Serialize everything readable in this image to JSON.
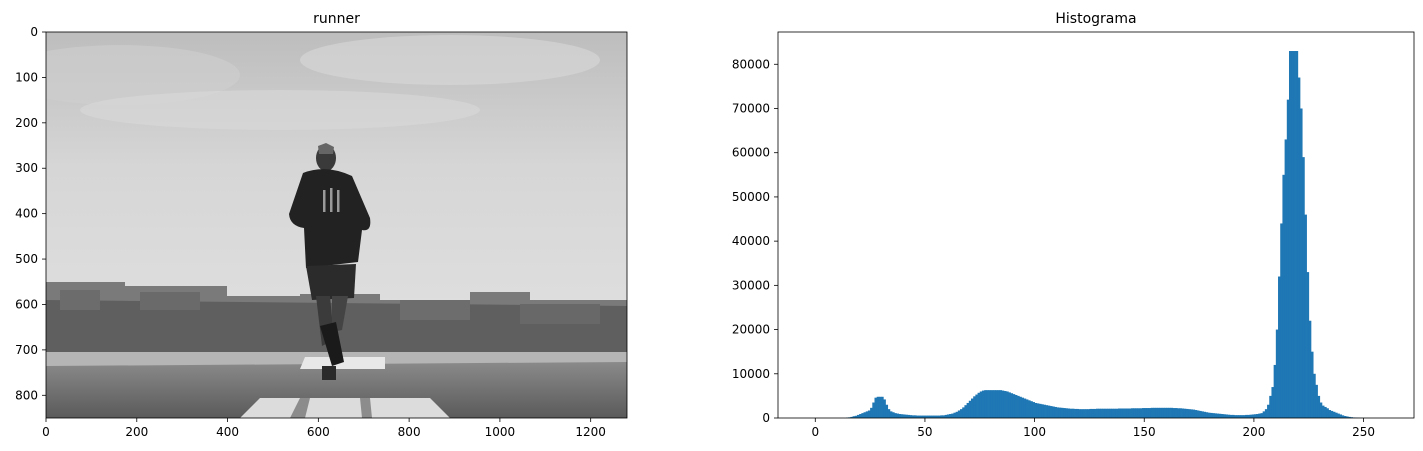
{
  "figure": {
    "background": "#ffffff"
  },
  "chart_data": [
    {
      "type": "image",
      "title": "runner",
      "image_description": "Grayscale photo of a runner seen from behind on an airfield runway, overcast sky, row of buildings and trees on the horizon",
      "xlim": [
        0,
        1280
      ],
      "ylim": [
        850,
        0
      ],
      "y_inverted": true,
      "xticks": [
        0,
        200,
        400,
        600,
        800,
        1000,
        1200
      ],
      "yticks": [
        0,
        100,
        200,
        300,
        400,
        500,
        600,
        700,
        800
      ],
      "grid": false
    },
    {
      "type": "bar",
      "title": "Histograma",
      "xlabel": "",
      "ylabel": "",
      "bar_color": "#1f77b4",
      "xlim": [
        -17,
        273
      ],
      "ylim": [
        0,
        87300
      ],
      "xticks": [
        0,
        50,
        100,
        150,
        200,
        250
      ],
      "yticks": [
        0,
        10000,
        20000,
        30000,
        40000,
        50000,
        60000,
        70000,
        80000
      ],
      "grid": false,
      "bins": [
        [
          14,
          80
        ],
        [
          15,
          150
        ],
        [
          16,
          250
        ],
        [
          17,
          400
        ],
        [
          18,
          500
        ],
        [
          19,
          700
        ],
        [
          20,
          900
        ],
        [
          21,
          1100
        ],
        [
          22,
          1300
        ],
        [
          23,
          1500
        ],
        [
          24,
          1700
        ],
        [
          25,
          2300
        ],
        [
          26,
          3500
        ],
        [
          27,
          4600
        ],
        [
          28,
          4800
        ],
        [
          29,
          4800
        ],
        [
          30,
          4800
        ],
        [
          31,
          4200
        ],
        [
          32,
          3000
        ],
        [
          33,
          2000
        ],
        [
          34,
          1500
        ],
        [
          35,
          1300
        ],
        [
          36,
          1100
        ],
        [
          37,
          1000
        ],
        [
          38,
          900
        ],
        [
          39,
          850
        ],
        [
          40,
          800
        ],
        [
          41,
          750
        ],
        [
          42,
          700
        ],
        [
          43,
          650
        ],
        [
          44,
          600
        ],
        [
          45,
          600
        ],
        [
          46,
          550
        ],
        [
          47,
          550
        ],
        [
          48,
          550
        ],
        [
          49,
          550
        ],
        [
          50,
          550
        ],
        [
          51,
          550
        ],
        [
          52,
          550
        ],
        [
          53,
          550
        ],
        [
          54,
          550
        ],
        [
          55,
          550
        ],
        [
          56,
          550
        ],
        [
          57,
          600
        ],
        [
          58,
          600
        ],
        [
          59,
          700
        ],
        [
          60,
          800
        ],
        [
          61,
          900
        ],
        [
          62,
          1000
        ],
        [
          63,
          1200
        ],
        [
          64,
          1400
        ],
        [
          65,
          1700
        ],
        [
          66,
          2000
        ],
        [
          67,
          2400
        ],
        [
          68,
          2900
        ],
        [
          69,
          3400
        ],
        [
          70,
          3900
        ],
        [
          71,
          4400
        ],
        [
          72,
          4900
        ],
        [
          73,
          5300
        ],
        [
          74,
          5700
        ],
        [
          75,
          6000
        ],
        [
          76,
          6200
        ],
        [
          77,
          6300
        ],
        [
          78,
          6300
        ],
        [
          79,
          6300
        ],
        [
          80,
          6300
        ],
        [
          81,
          6300
        ],
        [
          82,
          6300
        ],
        [
          83,
          6300
        ],
        [
          84,
          6300
        ],
        [
          85,
          6200
        ],
        [
          86,
          6100
        ],
        [
          87,
          6000
        ],
        [
          88,
          5800
        ],
        [
          89,
          5600
        ],
        [
          90,
          5400
        ],
        [
          91,
          5200
        ],
        [
          92,
          5000
        ],
        [
          93,
          4800
        ],
        [
          94,
          4600
        ],
        [
          95,
          4400
        ],
        [
          96,
          4200
        ],
        [
          97,
          4000
        ],
        [
          98,
          3800
        ],
        [
          99,
          3600
        ],
        [
          100,
          3400
        ],
        [
          101,
          3300
        ],
        [
          102,
          3200
        ],
        [
          103,
          3100
        ],
        [
          104,
          3000
        ],
        [
          105,
          2900
        ],
        [
          106,
          2800
        ],
        [
          107,
          2700
        ],
        [
          108,
          2600
        ],
        [
          109,
          2500
        ],
        [
          110,
          2400
        ],
        [
          111,
          2350
        ],
        [
          112,
          2300
        ],
        [
          113,
          2250
        ],
        [
          114,
          2200
        ],
        [
          115,
          2150
        ],
        [
          116,
          2100
        ],
        [
          117,
          2100
        ],
        [
          118,
          2050
        ],
        [
          119,
          2050
        ],
        [
          120,
          2000
        ],
        [
          121,
          2000
        ],
        [
          122,
          2000
        ],
        [
          123,
          2000
        ],
        [
          124,
          2000
        ],
        [
          125,
          2050
        ],
        [
          126,
          2050
        ],
        [
          127,
          2050
        ],
        [
          128,
          2100
        ],
        [
          129,
          2100
        ],
        [
          130,
          2100
        ],
        [
          131,
          2100
        ],
        [
          132,
          2100
        ],
        [
          133,
          2100
        ],
        [
          134,
          2100
        ],
        [
          135,
          2100
        ],
        [
          136,
          2100
        ],
        [
          137,
          2100
        ],
        [
          138,
          2150
        ],
        [
          139,
          2150
        ],
        [
          140,
          2150
        ],
        [
          141,
          2150
        ],
        [
          142,
          2150
        ],
        [
          143,
          2150
        ],
        [
          144,
          2200
        ],
        [
          145,
          2200
        ],
        [
          146,
          2200
        ],
        [
          147,
          2200
        ],
        [
          148,
          2200
        ],
        [
          149,
          2250
        ],
        [
          150,
          2250
        ],
        [
          151,
          2250
        ],
        [
          152,
          2250
        ],
        [
          153,
          2300
        ],
        [
          154,
          2300
        ],
        [
          155,
          2300
        ],
        [
          156,
          2300
        ],
        [
          157,
          2300
        ],
        [
          158,
          2300
        ],
        [
          159,
          2300
        ],
        [
          160,
          2300
        ],
        [
          161,
          2300
        ],
        [
          162,
          2300
        ],
        [
          163,
          2250
        ],
        [
          164,
          2250
        ],
        [
          165,
          2200
        ],
        [
          166,
          2200
        ],
        [
          167,
          2150
        ],
        [
          168,
          2100
        ],
        [
          169,
          2050
        ],
        [
          170,
          2000
        ],
        [
          171,
          1950
        ],
        [
          172,
          1900
        ],
        [
          173,
          1800
        ],
        [
          174,
          1700
        ],
        [
          175,
          1600
        ],
        [
          176,
          1500
        ],
        [
          177,
          1400
        ],
        [
          178,
          1300
        ],
        [
          179,
          1200
        ],
        [
          180,
          1150
        ],
        [
          181,
          1100
        ],
        [
          182,
          1050
        ],
        [
          183,
          1000
        ],
        [
          184,
          950
        ],
        [
          185,
          900
        ],
        [
          186,
          850
        ],
        [
          187,
          800
        ],
        [
          188,
          750
        ],
        [
          189,
          700
        ],
        [
          190,
          700
        ],
        [
          191,
          650
        ],
        [
          192,
          650
        ],
        [
          193,
          650
        ],
        [
          194,
          650
        ],
        [
          195,
          650
        ],
        [
          196,
          700
        ],
        [
          197,
          700
        ],
        [
          198,
          750
        ],
        [
          199,
          800
        ],
        [
          200,
          850
        ],
        [
          201,
          900
        ],
        [
          202,
          1000
        ],
        [
          203,
          1100
        ],
        [
          204,
          1500
        ],
        [
          205,
          2000
        ],
        [
          206,
          3000
        ],
        [
          207,
          5000
        ],
        [
          208,
          7000
        ],
        [
          209,
          12000
        ],
        [
          210,
          20000
        ],
        [
          211,
          32000
        ],
        [
          212,
          44000
        ],
        [
          213,
          55000
        ],
        [
          214,
          63000
        ],
        [
          215,
          72000
        ],
        [
          216,
          83000
        ],
        [
          217,
          83000
        ],
        [
          218,
          83000
        ],
        [
          219,
          83000
        ],
        [
          220,
          77000
        ],
        [
          221,
          70000
        ],
        [
          222,
          59000
        ],
        [
          223,
          46000
        ],
        [
          224,
          33000
        ],
        [
          225,
          22000
        ],
        [
          226,
          15000
        ],
        [
          227,
          10000
        ],
        [
          228,
          7500
        ],
        [
          229,
          5000
        ],
        [
          230,
          3500
        ],
        [
          231,
          2800
        ],
        [
          232,
          2500
        ],
        [
          233,
          2200
        ],
        [
          234,
          1800
        ],
        [
          235,
          1600
        ],
        [
          236,
          1400
        ],
        [
          237,
          1200
        ],
        [
          238,
          1000
        ],
        [
          239,
          800
        ],
        [
          240,
          600
        ],
        [
          241,
          450
        ],
        [
          242,
          350
        ],
        [
          243,
          250
        ],
        [
          244,
          180
        ],
        [
          245,
          120
        ],
        [
          246,
          80
        ],
        [
          247,
          50
        ],
        [
          248,
          30
        ],
        [
          249,
          20
        ],
        [
          250,
          15
        ]
      ]
    }
  ]
}
